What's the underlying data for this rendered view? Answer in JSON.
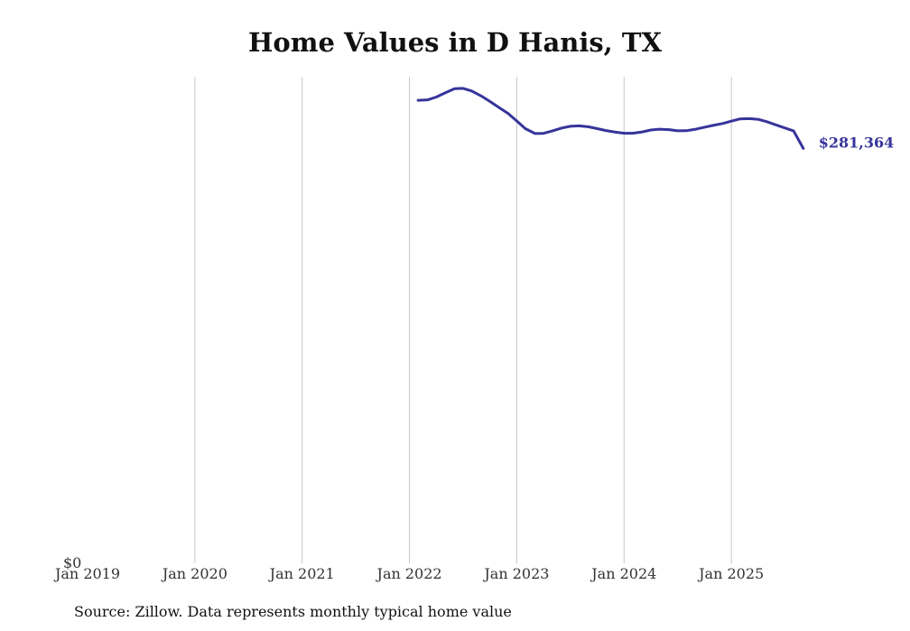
{
  "chart_data": {
    "type": "line",
    "title": "Home Values in D Hanis, TX",
    "xlabel": "",
    "ylabel": "",
    "x_ticks": [
      "Jan 2019",
      "Jan 2020",
      "Jan 2021",
      "Jan 2022",
      "Jan 2023",
      "Jan 2024",
      "Jan 2025"
    ],
    "y_ticks": [
      "$0"
    ],
    "ylim": [
      0,
      330000
    ],
    "grid": "vertical",
    "series_color": "#36349a",
    "series": [
      {
        "name": "Typical home value",
        "x": [
          2022.08,
          2022.17,
          2022.25,
          2022.33,
          2022.42,
          2022.5,
          2022.58,
          2022.67,
          2022.75,
          2022.83,
          2022.92,
          2023.0,
          2023.08,
          2023.17,
          2023.25,
          2023.33,
          2023.42,
          2023.5,
          2023.58,
          2023.67,
          2023.75,
          2023.83,
          2023.92,
          2024.0,
          2024.08,
          2024.17,
          2024.25,
          2024.33,
          2024.42,
          2024.5,
          2024.58,
          2024.67,
          2024.75,
          2024.83,
          2024.92,
          2025.0,
          2025.08,
          2025.17,
          2025.25,
          2025.33,
          2025.42,
          2025.5,
          2025.58,
          2025.67
        ],
        "values": [
          314000,
          314300,
          316200,
          319000,
          321900,
          322100,
          320300,
          316900,
          313200,
          309300,
          305000,
          300000,
          294800,
          291500,
          291600,
          293200,
          295200,
          296400,
          296700,
          296000,
          294800,
          293500,
          292400,
          291700,
          291700,
          292600,
          293900,
          294400,
          294100,
          293300,
          293400,
          294400,
          295800,
          297000,
          298300,
          299900,
          301400,
          301600,
          301100,
          299500,
          297200,
          295200,
          293200,
          281364
        ]
      }
    ],
    "end_label": "$281,364"
  },
  "source_note": "Source: Zillow. Data represents monthly typical home value"
}
